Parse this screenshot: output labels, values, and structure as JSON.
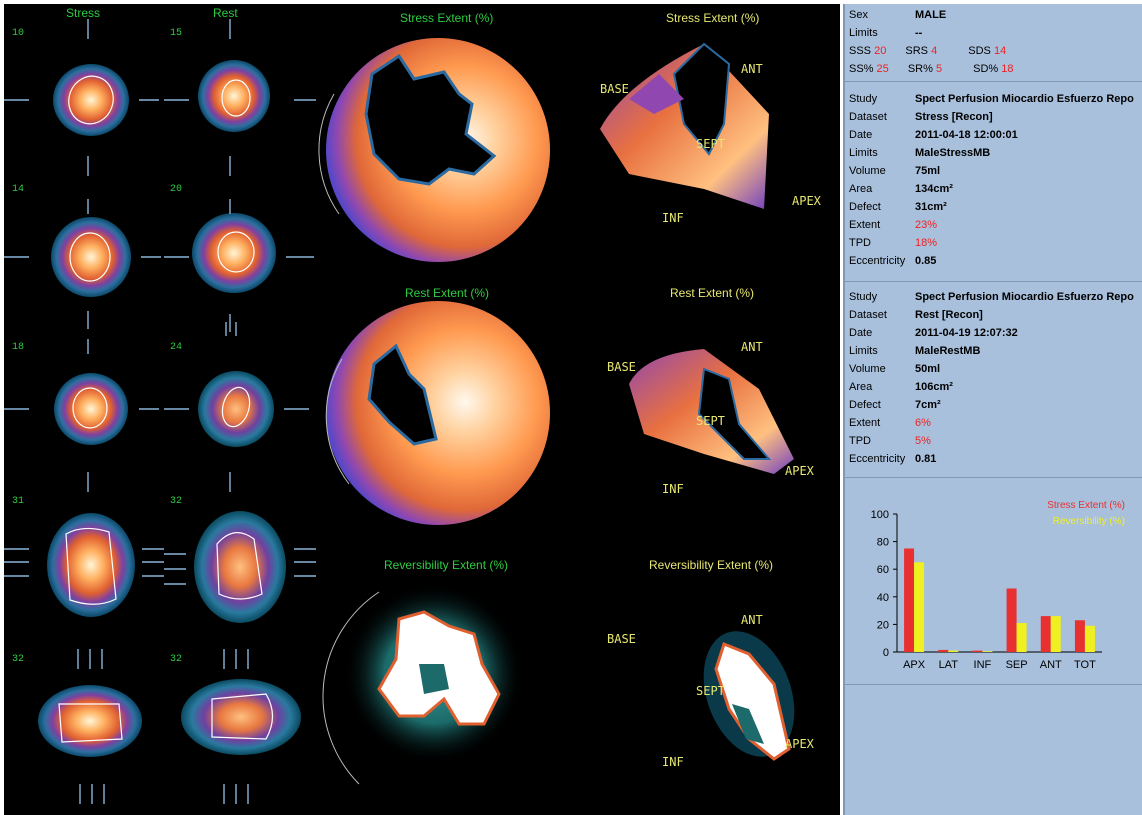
{
  "left_panel": {
    "col_titles": {
      "stress": "Stress",
      "rest": "Rest"
    },
    "slice_numbers": [
      "10",
      "15",
      "14",
      "20",
      "18",
      "24",
      "31",
      "32",
      "32",
      "32"
    ],
    "map_titles": {
      "stress_polar": "Stress Extent (%)",
      "stress_3d": "Stress Extent (%)",
      "rest_polar": "Rest Extent (%)",
      "rest_3d": "Rest Extent (%)",
      "rev_polar": "Reversibility Extent (%)",
      "rev_3d": "Reversibility Extent (%)"
    },
    "orientation": {
      "base": "BASE",
      "ant": "ANT",
      "sept": "SEPT",
      "apex": "APEX",
      "inf": "INF"
    }
  },
  "right_panel": {
    "patient": {
      "sex_key": "Sex",
      "sex_val": "MALE",
      "limits_key": "Limits",
      "limits_val": "--",
      "sss_k": "SSS",
      "sss_v": "20",
      "srs_k": "SRS",
      "srs_v": "4",
      "sds_k": "SDS",
      "sds_v": "14",
      "ssp_k": "SS%",
      "ssp_v": "25",
      "srp_k": "SR%",
      "srp_v": "5",
      "sdp_k": "SD%",
      "sdp_v": "18"
    },
    "stress_study": {
      "study_k": "Study",
      "study_v": "Spect Perfusion Miocardio Esfuerzo Repo",
      "dataset_k": "Dataset",
      "dataset_v": "Stress [Recon]",
      "date_k": "Date",
      "date_v": "2011-04-18 12:00:01",
      "limits_k": "Limits",
      "limits_v": "MaleStressMB",
      "volume_k": "Volume",
      "volume_v": "75ml",
      "area_k": "Area",
      "area_v": "134cm²",
      "defect_k": "Defect",
      "defect_v": "31cm²",
      "extent_k": "Extent",
      "extent_v": "23%",
      "tpd_k": "TPD",
      "tpd_v": "18%",
      "ecc_k": "Eccentricity",
      "ecc_v": "0.85"
    },
    "rest_study": {
      "study_k": "Study",
      "study_v": "Spect Perfusion Miocardio Esfuerzo Repo",
      "dataset_k": "Dataset",
      "dataset_v": "Rest [Recon]",
      "date_k": "Date",
      "date_v": "2011-04-19 12:07:32",
      "limits_k": "Limits",
      "limits_v": "MaleRestMB",
      "volume_k": "Volume",
      "volume_v": "50ml",
      "area_k": "Area",
      "area_v": "106cm²",
      "defect_k": "Defect",
      "defect_v": "7cm²",
      "extent_k": "Extent",
      "extent_v": "6%",
      "tpd_k": "TPD",
      "tpd_v": "5%",
      "ecc_k": "Eccentricity",
      "ecc_v": "0.81"
    }
  },
  "chart_data": {
    "type": "bar",
    "categories": [
      "APX",
      "LAT",
      "INF",
      "SEP",
      "ANT",
      "TOT"
    ],
    "series": [
      {
        "name": "Stress Extent (%)",
        "color": "#e83030",
        "values": [
          75,
          1.5,
          1,
          46,
          26,
          23
        ]
      },
      {
        "name": "Reversibility (%)",
        "color": "#f0f020",
        "values": [
          65,
          1,
          0.5,
          21,
          26,
          19
        ]
      }
    ],
    "ylim": [
      0,
      100
    ],
    "yticks": [
      "0",
      "20",
      "40",
      "60",
      "80",
      "100"
    ],
    "grid": false,
    "legend": "top-right"
  }
}
